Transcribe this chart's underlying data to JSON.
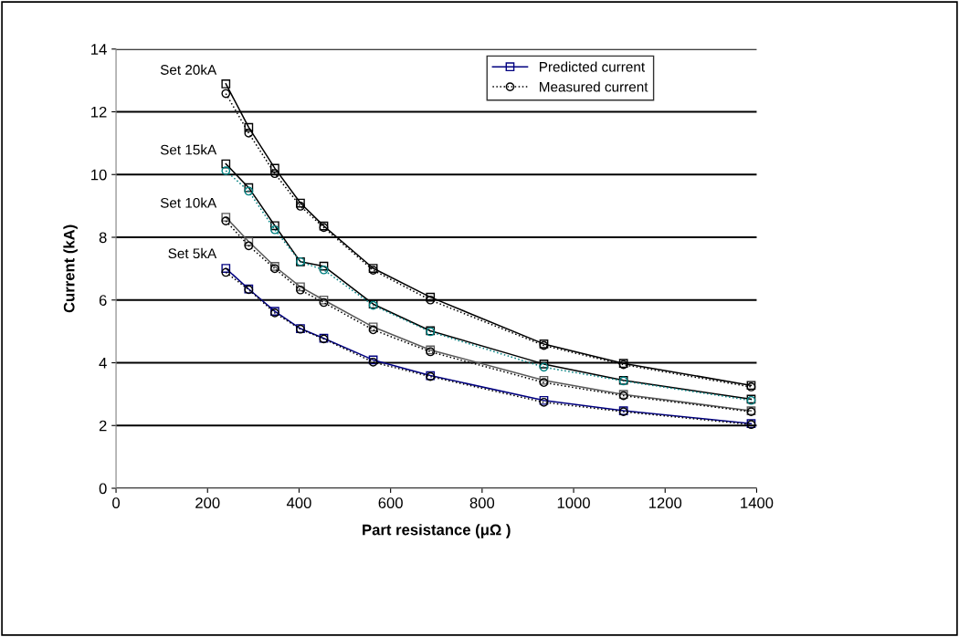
{
  "chart_data": {
    "type": "line",
    "xlabel": "Part resistance (μΩ )",
    "ylabel": "Current (kA)",
    "x": [
      240,
      290,
      347,
      403,
      454,
      562,
      687,
      935,
      1109,
      1388
    ],
    "xlim": [
      0,
      1400
    ],
    "xticks": [
      0,
      200,
      400,
      600,
      800,
      1000,
      1200,
      1400
    ],
    "ylim": [
      0,
      14
    ],
    "yticks": [
      0,
      2,
      4,
      6,
      8,
      10,
      12,
      14
    ],
    "grid": "y",
    "legend": "top right",
    "series": [
      {
        "name": "Predicted current",
        "color": "#000080",
        "marker": "square",
        "line_style": "solid",
        "values": [
          7.01,
          6.35,
          5.64,
          5.09,
          4.78,
          4.09,
          3.59,
          2.8,
          2.47,
          2.06
        ]
      },
      {
        "name": "Measured current",
        "color": "#000000",
        "marker": "circle",
        "line_style": "dotted",
        "values": [
          12.58,
          11.32,
          10.03,
          8.99,
          8.31,
          6.95,
          6.0,
          4.55,
          3.94,
          3.23
        ]
      },
      {
        "color": "#000000",
        "marker": "square",
        "line_style": "solid",
        "values": [
          12.89,
          11.5,
          10.2,
          9.09,
          8.36,
          7.01,
          6.09,
          4.6,
          3.98,
          3.28
        ]
      },
      {
        "color": "#000000",
        "marker": "square",
        "line_style": "solid",
        "values": [
          10.34,
          9.58,
          8.37,
          7.22,
          7.08,
          5.87,
          5.02,
          3.96,
          3.44,
          2.84
        ]
      },
      {
        "color": "#008080",
        "marker": "circle",
        "line_style": "dotted",
        "values": [
          10.12,
          9.47,
          8.24,
          7.22,
          6.96,
          5.83,
          4.99,
          3.86,
          3.42,
          2.8
        ]
      },
      {
        "color": "#595959",
        "marker": "square",
        "line_style": "solid",
        "values": [
          8.64,
          7.86,
          7.07,
          6.42,
          6.0,
          5.14,
          4.41,
          3.44,
          2.99,
          2.47
        ]
      },
      {
        "color": "#000000",
        "marker": "circle",
        "line_style": "dotted",
        "values": [
          8.52,
          7.73,
          7.0,
          6.32,
          5.92,
          5.05,
          4.35,
          3.37,
          2.95,
          2.44
        ]
      },
      {
        "color": "#000000",
        "marker": "circle",
        "line_style": "dotted",
        "values": [
          6.88,
          6.33,
          5.59,
          5.07,
          4.76,
          4.02,
          3.56,
          2.74,
          2.44,
          2.03
        ]
      }
    ],
    "annotations": [
      "Set 20kA",
      "Set 15kA",
      "Set 10kA",
      "Set 5kA"
    ]
  }
}
